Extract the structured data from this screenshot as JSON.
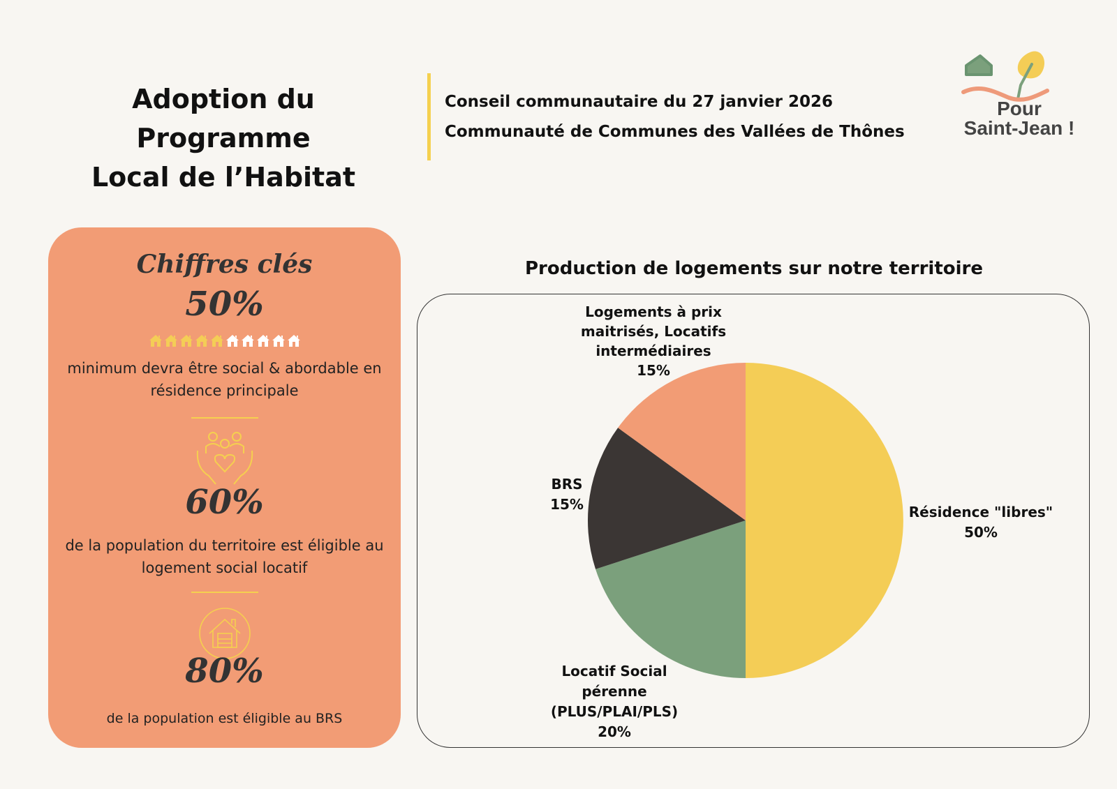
{
  "header": {
    "title_line1": "Adoption du Programme",
    "title_line2": "Local de l’Habitat",
    "subtitle1": "Conseil communautaire du 27 janvier 2026",
    "subtitle2": "Communauté de Communes des Vallées de Thônes"
  },
  "logo": {
    "line1": "Pour",
    "line2": "Saint-Jean !"
  },
  "key_figures": {
    "heading": "Chiffres clés",
    "items": [
      {
        "value": "50%",
        "icon": "houses-rating-icon",
        "rating": 5,
        "rating_of": 10,
        "text": "minimum devra être social & abordable en résidence principale"
      },
      {
        "value": "60%",
        "icon": "hands-holding-family-icon",
        "text": "de la population du territoire est éligible au logement social locatif"
      },
      {
        "value": "80%",
        "icon": "house-circle-icon",
        "text": "de la population est éligible au BRS"
      }
    ]
  },
  "colors": {
    "card": "#f29c75",
    "accent": "#f5d04f",
    "yellow": "#f4cd56",
    "green": "#7ba07c",
    "dark": "#3b3634",
    "salmon": "#f29c75"
  },
  "chart_data": {
    "type": "pie",
    "title": "Production de logements sur notre territoire",
    "slices": [
      {
        "label": "Résidence \"libres\"",
        "value": 50,
        "display": "50%",
        "color": "#f4cd56"
      },
      {
        "label": "Locatif Social pérenne (PLUS/PLAI/PLS)",
        "value": 20,
        "display": "20%",
        "color": "#7ba07c"
      },
      {
        "label": "BRS",
        "value": 15,
        "display": "15%",
        "color": "#3b3634"
      },
      {
        "label": "Logements à prix maitrisés, Locatifs intermédiaires",
        "value": 15,
        "display": "15%",
        "color": "#f29c75"
      }
    ]
  }
}
